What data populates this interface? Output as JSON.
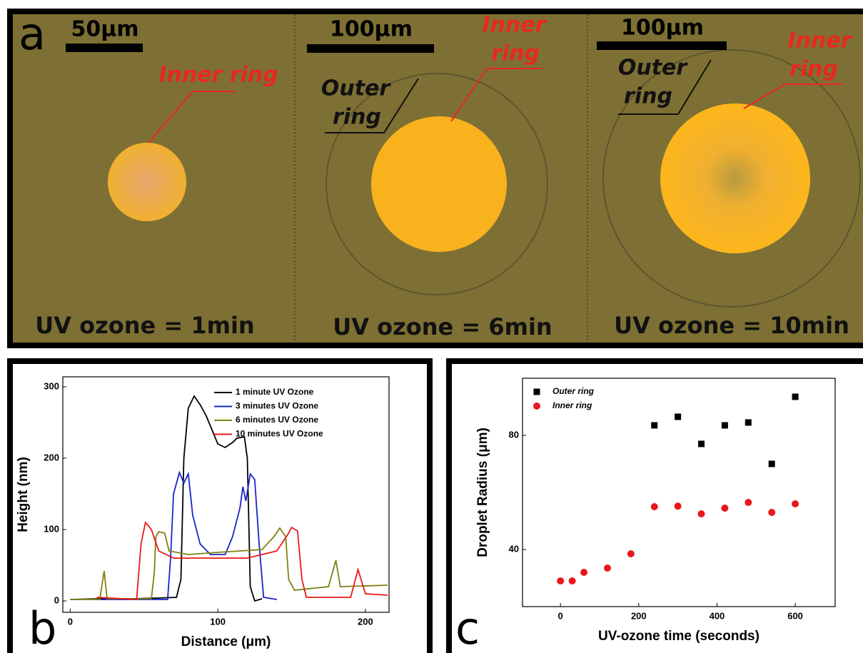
{
  "figure": {
    "panel_labels": [
      "a",
      "b",
      "c"
    ],
    "micrographs": [
      {
        "scale_bar": "50μm",
        "inner_label": [
          "Inner ring"
        ],
        "caption": "UV ozone = 1min"
      },
      {
        "scale_bar": "100μm",
        "inner_label": [
          "Inner",
          "ring"
        ],
        "outer_label": [
          "Outer",
          "ring"
        ],
        "caption": "UV ozone = 6min"
      },
      {
        "scale_bar": "100μm",
        "inner_label": [
          "Inner",
          "ring"
        ],
        "outer_label": [
          "Outer",
          "ring"
        ],
        "caption": "UV ozone = 10min"
      }
    ]
  },
  "chart_data": [
    {
      "type": "line",
      "x_label": "Distance (μm)",
      "y_label": "Height (nm)",
      "xlim": [
        -5,
        216
      ],
      "ylim": [
        -16,
        314
      ],
      "xticks": [
        0,
        100,
        200
      ],
      "yticks": [
        0,
        100,
        200,
        300
      ],
      "series": [
        {
          "name": "1 minute UV Ozone",
          "color": "#000000",
          "x": [
            0,
            20,
            40,
            60,
            72,
            75,
            77,
            80,
            84,
            88,
            92,
            96,
            100,
            105,
            110,
            113,
            118,
            120,
            122,
            125,
            130
          ],
          "values": [
            2,
            3,
            3,
            4,
            5,
            30,
            200,
            270,
            287,
            275,
            260,
            240,
            220,
            215,
            222,
            228,
            230,
            200,
            20,
            0,
            3
          ]
        },
        {
          "name": "3 minutes UV Ozone",
          "color": "#1a24c8",
          "x": [
            18,
            40,
            60,
            66,
            68,
            70,
            74,
            77,
            80,
            83,
            88,
            95,
            105,
            110,
            115,
            117,
            119,
            122,
            125,
            128,
            131,
            140
          ],
          "values": [
            2,
            2,
            2,
            2,
            60,
            150,
            180,
            165,
            178,
            120,
            80,
            65,
            65,
            90,
            130,
            160,
            140,
            178,
            170,
            80,
            5,
            2
          ]
        },
        {
          "name": "6 minutes UV Ozone",
          "color": "#808012",
          "x": [
            0,
            20,
            23,
            25,
            55,
            57,
            58,
            60,
            64,
            67,
            80,
            100,
            130,
            138,
            142,
            146,
            148,
            152,
            175,
            180,
            183,
            215
          ],
          "values": [
            2,
            2,
            42,
            3,
            3,
            40,
            90,
            97,
            95,
            70,
            65,
            68,
            72,
            90,
            102,
            90,
            30,
            15,
            20,
            57,
            20,
            22
          ]
        },
        {
          "name": "10 minutes UV Ozone",
          "color": "#e8181a",
          "x": [
            18,
            45,
            48,
            51,
            55,
            60,
            70,
            120,
            140,
            148,
            150,
            154,
            157,
            160,
            190,
            195,
            200,
            215
          ],
          "values": [
            5,
            2,
            80,
            110,
            100,
            70,
            60,
            60,
            70,
            95,
            103,
            98,
            30,
            5,
            5,
            44,
            10,
            8
          ]
        }
      ]
    },
    {
      "type": "scatter",
      "x_label": "UV-ozone time (seconds)",
      "y_label": "Droplet Radius (μm)",
      "xlim": [
        -97,
        702
      ],
      "ylim": [
        20,
        100
      ],
      "xticks": [
        0,
        200,
        400,
        600
      ],
      "yticks": [
        40,
        80
      ],
      "series": [
        {
          "name": "Outer ring",
          "color": "#000000",
          "marker": "square",
          "x": [
            240,
            300,
            360,
            420,
            480,
            540,
            600
          ],
          "values": [
            83.5,
            86.5,
            77,
            83.5,
            84.5,
            70,
            93.5
          ]
        },
        {
          "name": "Inner ring",
          "color": "#e8181a",
          "marker": "circle",
          "x": [
            0,
            30,
            60,
            120,
            180,
            240,
            300,
            360,
            420,
            480,
            540,
            600
          ],
          "values": [
            29,
            29,
            32,
            33.5,
            38.5,
            55,
            55.2,
            52.5,
            54.5,
            56.5,
            53,
            56
          ]
        }
      ]
    }
  ]
}
